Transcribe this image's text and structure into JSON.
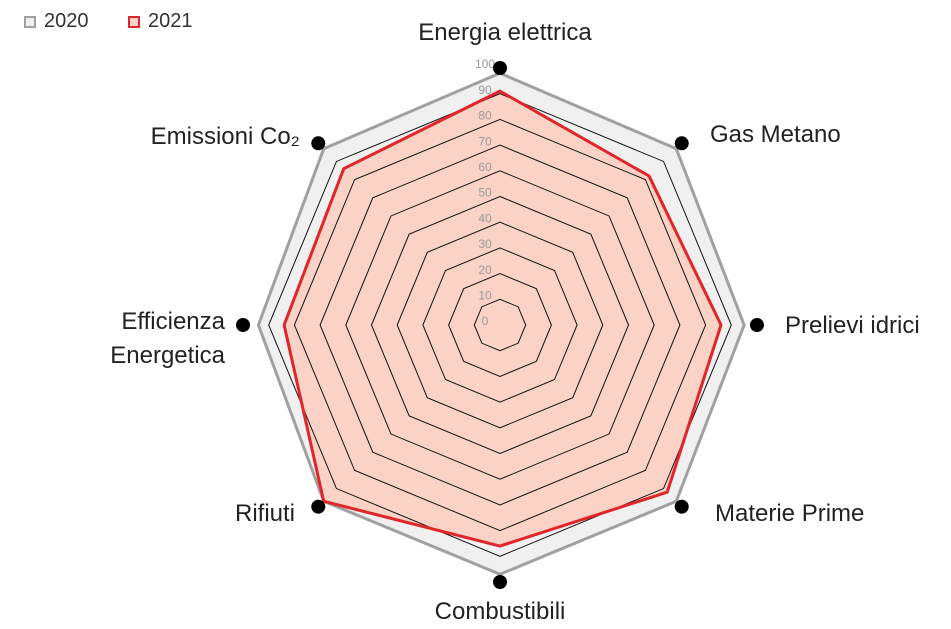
{
  "chart_data": {
    "type": "radar",
    "categories": [
      "Energia elettrica",
      "Gas Metano",
      "Prelievi idrici",
      "Materie Prime",
      "Combustibili",
      "Rifiuti",
      "Efficienza Energetica",
      "Emissioni Co₂"
    ],
    "series": [
      {
        "name": "2020",
        "color": "#a0a0a0",
        "fill": "#f0f0f0",
        "values": [
          98,
          97,
          95,
          97,
          97,
          97,
          94,
          97
        ]
      },
      {
        "name": "2021",
        "color": "#e0262a",
        "fill": "#fbd3c6",
        "values": [
          91,
          82,
          86,
          92,
          86,
          97,
          84,
          86
        ]
      }
    ],
    "ylim": [
      0,
      100
    ],
    "yticks": [
      0,
      10,
      20,
      30,
      40,
      50,
      60,
      70,
      80,
      90,
      100
    ],
    "legend": "top-left"
  }
}
